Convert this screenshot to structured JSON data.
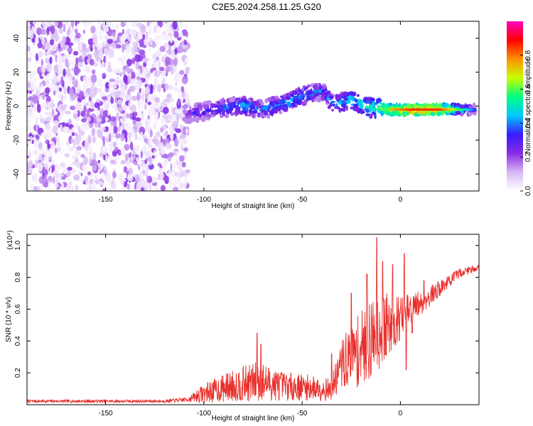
{
  "title": "C2E5.2024.258.11.25.G20",
  "panels": {
    "top": {
      "ylabel": "Frequency (Hz)",
      "xlabel": "Height of straight line (km)",
      "colorbar_label": "Normalized spectral amplitude"
    },
    "bottom": {
      "ylabel": "SNR (10 * v/v)",
      "multiplier": "(x10⁴)",
      "xlabel": "Height of straight line (km)"
    }
  },
  "colors": {
    "snr_line": "#e8302c",
    "axis": "#000000"
  },
  "chart_data": [
    {
      "type": "heatmap",
      "title": "C2E5.2024.258.11.25.G20",
      "xlabel": "Height of straight line (km)",
      "ylabel": "Frequency (Hz)",
      "xlim": [
        -190,
        40
      ],
      "ylim": [
        -50,
        50
      ],
      "x_ticks": [
        -150,
        -100,
        -50,
        0
      ],
      "y_ticks": [
        -40,
        -20,
        0,
        20,
        40
      ],
      "colorbar": {
        "label": "Normalized spectral amplitude",
        "range": [
          0,
          1
        ],
        "ticks": [
          "0.0",
          "0.2",
          "0.4",
          "0.6",
          "0.8"
        ],
        "colormap": [
          "#ffffff",
          "#d6b8f5",
          "#8a2be2",
          "#3a1cff",
          "#00c8ff",
          "#00ff80",
          "#c8ff00",
          "#ff9000",
          "#ff0000",
          "#ff00c0"
        ]
      },
      "noise_region": {
        "x_range": [
          -190,
          -108
        ],
        "freq_range": [
          -50,
          50
        ],
        "amplitude_range": [
          0.02,
          0.25
        ]
      },
      "signal_ridge": [
        {
          "x": -110,
          "f": -5,
          "amp": 0.3
        },
        {
          "x": -100,
          "f": -3,
          "amp": 0.4
        },
        {
          "x": -90,
          "f": -1,
          "amp": 0.45
        },
        {
          "x": -80,
          "f": 0,
          "amp": 0.5
        },
        {
          "x": -70,
          "f": -2,
          "amp": 0.45
        },
        {
          "x": -60,
          "f": 1,
          "amp": 0.5
        },
        {
          "x": -50,
          "f": 6,
          "amp": 0.5
        },
        {
          "x": -40,
          "f": 9,
          "amp": 0.45
        },
        {
          "x": -35,
          "f": 2,
          "amp": 0.5
        },
        {
          "x": -25,
          "f": 3,
          "amp": 0.55
        },
        {
          "x": -15,
          "f": -1,
          "amp": 0.6
        },
        {
          "x": -5,
          "f": -2,
          "amp": 0.75
        },
        {
          "x": 5,
          "f": -2,
          "amp": 0.85
        },
        {
          "x": 20,
          "f": -2,
          "amp": 0.85
        },
        {
          "x": 38,
          "f": -2,
          "amp": 0.35
        }
      ]
    },
    {
      "type": "line",
      "xlabel": "Height of straight line (km)",
      "ylabel": "SNR (10 * v/v)",
      "y_multiplier": 10000,
      "xlim": [
        -190,
        40
      ],
      "ylim": [
        0,
        1.07
      ],
      "x_ticks": [
        -150,
        -100,
        -50,
        0
      ],
      "y_ticks": [
        0.2,
        0.4,
        0.6,
        0.8,
        1.0
      ],
      "series": [
        {
          "color": "#e8302c",
          "envelope": [
            {
              "x": -190,
              "base": 0.02,
              "noise": 0.01
            },
            {
              "x": -120,
              "base": 0.02,
              "noise": 0.01
            },
            {
              "x": -108,
              "base": 0.03,
              "noise": 0.015
            },
            {
              "x": -100,
              "base": 0.06,
              "noise": 0.06
            },
            {
              "x": -85,
              "base": 0.1,
              "noise": 0.1
            },
            {
              "x": -72,
              "base": 0.12,
              "noise": 0.13
            },
            {
              "x": -60,
              "base": 0.1,
              "noise": 0.09
            },
            {
              "x": -45,
              "base": 0.09,
              "noise": 0.08
            },
            {
              "x": -35,
              "base": 0.08,
              "noise": 0.07
            },
            {
              "x": -30,
              "base": 0.22,
              "noise": 0.16
            },
            {
              "x": -20,
              "base": 0.3,
              "noise": 0.24
            },
            {
              "x": -10,
              "base": 0.42,
              "noise": 0.24
            },
            {
              "x": 0,
              "base": 0.52,
              "noise": 0.14
            },
            {
              "x": 10,
              "base": 0.62,
              "noise": 0.08
            },
            {
              "x": 20,
              "base": 0.72,
              "noise": 0.05
            },
            {
              "x": 30,
              "base": 0.82,
              "noise": 0.03
            },
            {
              "x": 40,
              "base": 0.86,
              "noise": 0.02
            }
          ],
          "spikes": [
            {
              "x": -73,
              "y": 0.45
            },
            {
              "x": -71,
              "y": 0.38
            },
            {
              "x": -35,
              "y": 0.32
            },
            {
              "x": -25,
              "y": 0.7
            },
            {
              "x": -17,
              "y": 0.82
            },
            {
              "x": -12,
              "y": 1.05
            },
            {
              "x": -9,
              "y": 0.9
            },
            {
              "x": -4,
              "y": 0.88
            },
            {
              "x": 2,
              "y": 0.95
            },
            {
              "x": 3,
              "y": 0.22
            },
            {
              "x": 6,
              "y": 0.45
            },
            {
              "x": 12,
              "y": 0.78
            }
          ]
        }
      ]
    }
  ]
}
